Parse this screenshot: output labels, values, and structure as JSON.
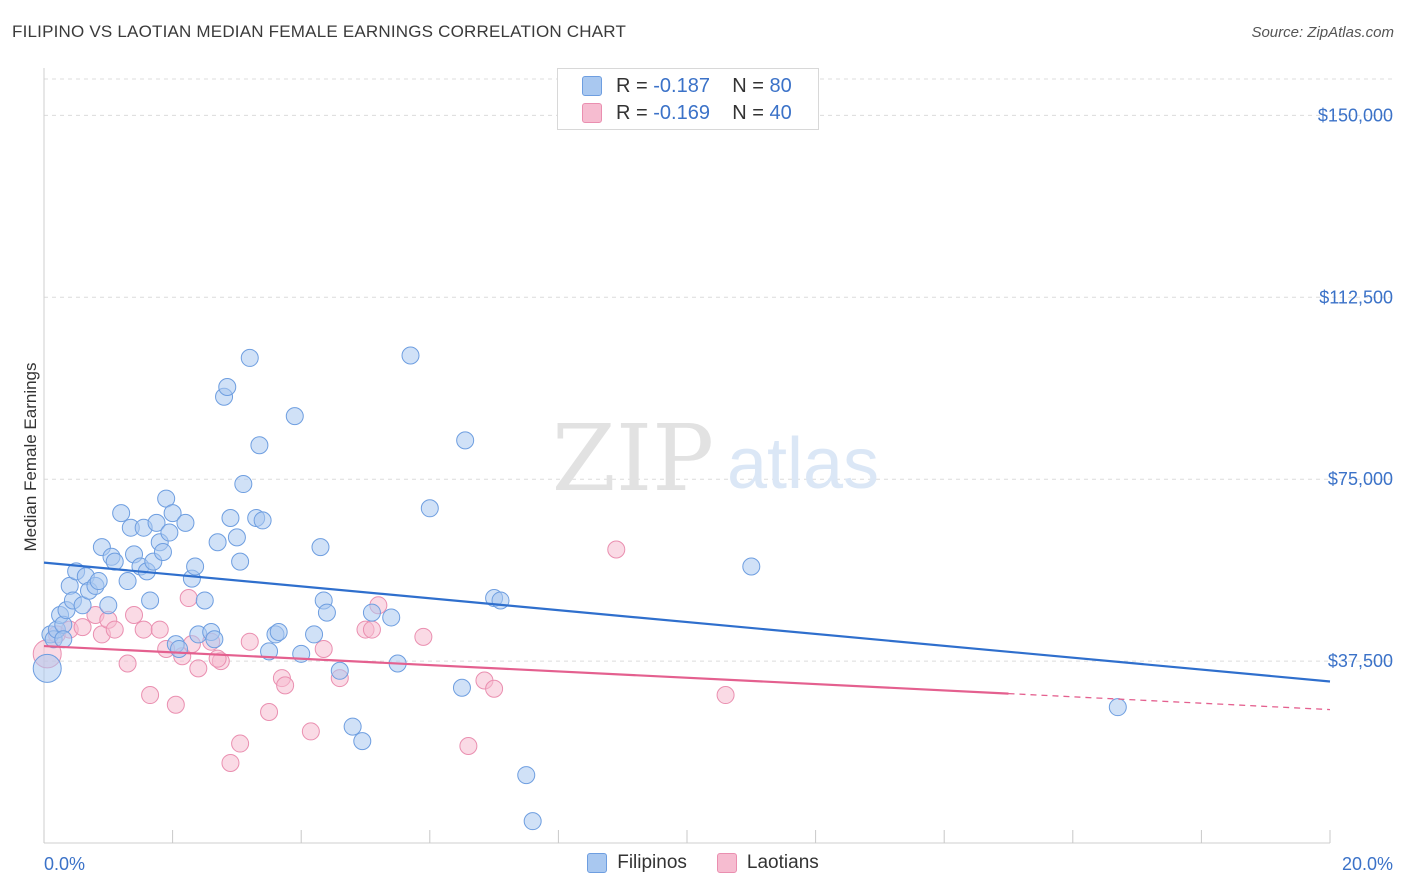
{
  "header": {
    "title": "FILIPINO VS LAOTIAN MEDIAN FEMALE EARNINGS CORRELATION CHART",
    "source": "Source: ZipAtlas.com"
  },
  "watermark": {
    "zip": "ZIP",
    "atlas": "atlas"
  },
  "legend": {
    "rows": [
      {
        "r_label": "R =",
        "r_value": "-0.187",
        "n_label": "N =",
        "n_value": "80"
      },
      {
        "r_label": "R =",
        "r_value": "-0.169",
        "n_label": "N =",
        "n_value": "40"
      }
    ]
  },
  "colors": {
    "filipinos_fill": "#a9c8f0",
    "filipinos_stroke": "#6e9ee0",
    "filipinos_line": "#2f6fcd",
    "laotians_fill": "#f6bcd0",
    "laotians_stroke": "#ea8fb0",
    "laotians_line": "#e4608f",
    "axis_label": "#3b72c8"
  },
  "chart_data": {
    "type": "scatter",
    "title": "FILIPINO VS LAOTIAN MEDIAN FEMALE EARNINGS CORRELATION CHART",
    "ylabel": "Median Female Earnings",
    "xlim": [
      0,
      20
    ],
    "ylim": [
      0,
      157500
    ],
    "x_tick_labels": [
      "0.0%",
      "20.0%"
    ],
    "y_ticks": [
      37500,
      75000,
      112500,
      150000
    ],
    "y_tick_labels": [
      "$37,500",
      "$75,000",
      "$112,500",
      "$150,000"
    ],
    "grid": true,
    "legend_position": "top-center",
    "series": [
      {
        "name": "Filipinos",
        "r": -0.187,
        "n": 80,
        "trend": {
          "x0": 0,
          "y0": 57800,
          "x1": 20,
          "y1": 33300
        },
        "points": [
          [
            0.1,
            43000
          ],
          [
            0.15,
            42000
          ],
          [
            0.2,
            44000
          ],
          [
            0.25,
            47000
          ],
          [
            0.3,
            45000
          ],
          [
            0.35,
            48000
          ],
          [
            0.4,
            53000
          ],
          [
            0.45,
            50000
          ],
          [
            0.5,
            56000
          ],
          [
            0.6,
            49000
          ],
          [
            0.65,
            55000
          ],
          [
            0.7,
            52000
          ],
          [
            0.8,
            53000
          ],
          [
            0.85,
            54000
          ],
          [
            0.9,
            61000
          ],
          [
            1.0,
            49000
          ],
          [
            1.05,
            59000
          ],
          [
            1.1,
            58000
          ],
          [
            1.2,
            68000
          ],
          [
            1.3,
            54000
          ],
          [
            1.35,
            65000
          ],
          [
            1.4,
            59500
          ],
          [
            1.5,
            57000
          ],
          [
            1.55,
            65000
          ],
          [
            1.6,
            56000
          ],
          [
            1.65,
            50000
          ],
          [
            1.7,
            58000
          ],
          [
            1.75,
            66000
          ],
          [
            1.8,
            62000
          ],
          [
            1.85,
            60000
          ],
          [
            1.9,
            71000
          ],
          [
            1.95,
            64000
          ],
          [
            2.0,
            68000
          ],
          [
            2.05,
            41000
          ],
          [
            2.1,
            40000
          ],
          [
            2.2,
            66000
          ],
          [
            2.3,
            54500
          ],
          [
            2.35,
            57000
          ],
          [
            2.4,
            43000
          ],
          [
            2.5,
            50000
          ],
          [
            2.6,
            43500
          ],
          [
            2.65,
            42000
          ],
          [
            2.7,
            62000
          ],
          [
            2.8,
            92000
          ],
          [
            2.85,
            94000
          ],
          [
            2.9,
            67000
          ],
          [
            3.0,
            63000
          ],
          [
            3.05,
            58000
          ],
          [
            3.1,
            74000
          ],
          [
            3.2,
            100000
          ],
          [
            3.3,
            67000
          ],
          [
            3.35,
            82000
          ],
          [
            3.4,
            66500
          ],
          [
            3.5,
            39500
          ],
          [
            3.6,
            43000
          ],
          [
            3.65,
            43500
          ],
          [
            3.9,
            88000
          ],
          [
            4.0,
            39000
          ],
          [
            4.2,
            43000
          ],
          [
            4.3,
            61000
          ],
          [
            4.35,
            50000
          ],
          [
            4.4,
            47500
          ],
          [
            4.6,
            35500
          ],
          [
            4.8,
            24000
          ],
          [
            4.95,
            21000
          ],
          [
            5.1,
            47500
          ],
          [
            5.4,
            46500
          ],
          [
            5.5,
            37000
          ],
          [
            5.7,
            100500
          ],
          [
            6.0,
            69000
          ],
          [
            6.5,
            32000
          ],
          [
            6.55,
            83000
          ],
          [
            7.0,
            50500
          ],
          [
            7.1,
            50000
          ],
          [
            7.5,
            14000
          ],
          [
            7.6,
            4500
          ],
          [
            11.0,
            57000
          ],
          [
            16.7,
            28000
          ],
          [
            0.05,
            36000
          ],
          [
            0.3,
            42000
          ]
        ]
      },
      {
        "name": "Laotians",
        "r": -0.169,
        "n": 40,
        "trend": {
          "x0": 0,
          "y0": 40600,
          "x1": 15,
          "y1": 30800
        },
        "trend_dashed": {
          "x0": 15,
          "y0": 30800,
          "x1": 20,
          "y1": 27500
        },
        "points": [
          [
            0.05,
            39000
          ],
          [
            0.2,
            43000
          ],
          [
            0.4,
            44000
          ],
          [
            0.6,
            44500
          ],
          [
            0.8,
            47000
          ],
          [
            0.9,
            43000
          ],
          [
            1.0,
            46000
          ],
          [
            1.1,
            44000
          ],
          [
            1.3,
            37000
          ],
          [
            1.4,
            47000
          ],
          [
            1.55,
            44000
          ],
          [
            1.65,
            30500
          ],
          [
            1.8,
            44000
          ],
          [
            1.9,
            40000
          ],
          [
            2.05,
            28500
          ],
          [
            2.15,
            38500
          ],
          [
            2.25,
            50500
          ],
          [
            2.3,
            41000
          ],
          [
            2.4,
            36000
          ],
          [
            2.6,
            41500
          ],
          [
            2.75,
            37500
          ],
          [
            2.9,
            16500
          ],
          [
            3.05,
            20500
          ],
          [
            3.2,
            41500
          ],
          [
            3.5,
            27000
          ],
          [
            3.7,
            34000
          ],
          [
            3.75,
            32500
          ],
          [
            4.15,
            23000
          ],
          [
            4.35,
            40000
          ],
          [
            4.6,
            34000
          ],
          [
            5.0,
            44000
          ],
          [
            5.1,
            44000
          ],
          [
            5.2,
            49000
          ],
          [
            5.9,
            42500
          ],
          [
            6.6,
            20000
          ],
          [
            6.85,
            33500
          ],
          [
            7.0,
            31800
          ],
          [
            8.9,
            60500
          ],
          [
            10.6,
            30500
          ],
          [
            2.7,
            38000
          ]
        ]
      }
    ]
  }
}
